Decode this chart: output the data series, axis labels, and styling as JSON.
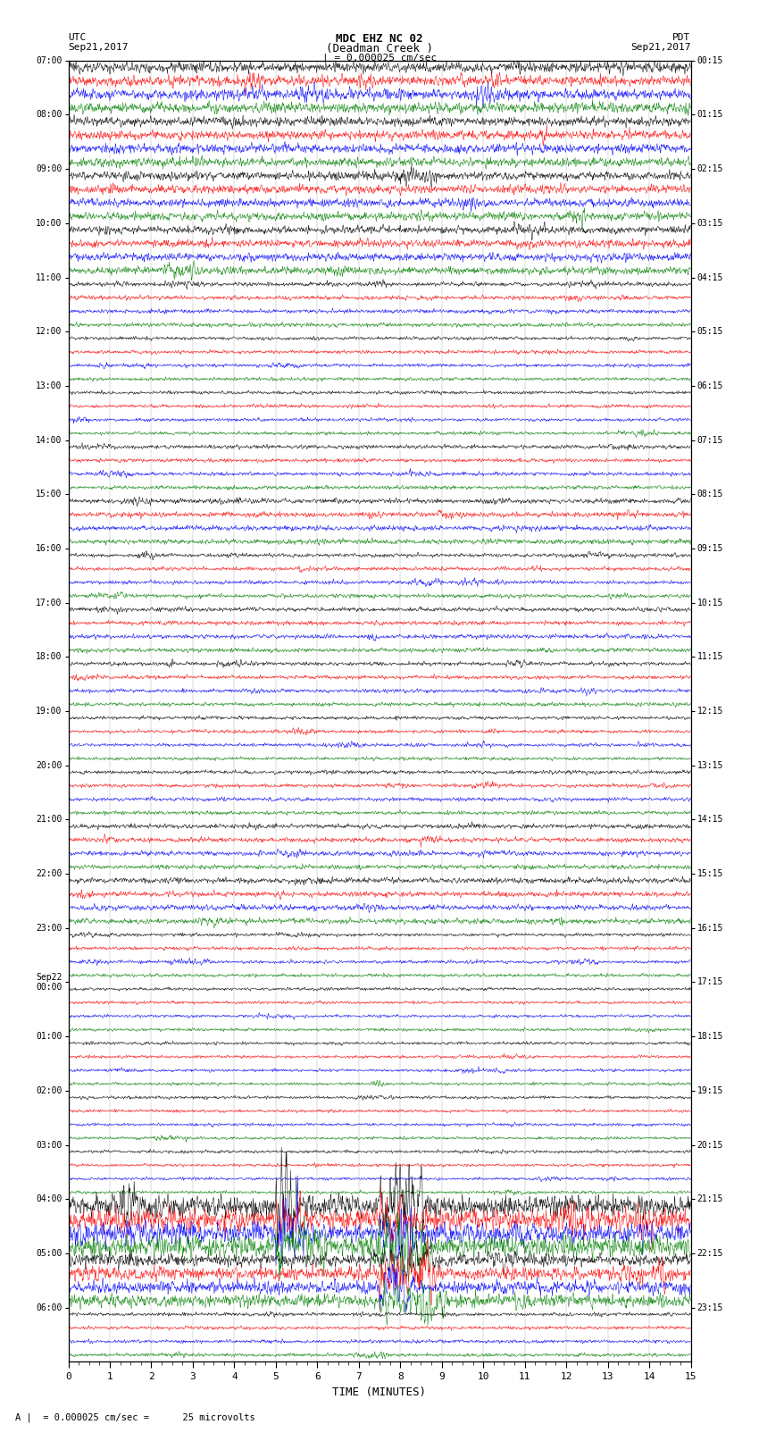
{
  "title_line1": "MDC EHZ NC 02",
  "title_line2": "(Deadman Creek )",
  "title_line3": "| = 0.000025 cm/sec",
  "left_label_top": "UTC",
  "left_label_date": "Sep21,2017",
  "right_label_top": "PDT",
  "right_label_date": "Sep21,2017",
  "bottom_label": "TIME (MINUTES)",
  "bottom_note": "A |  = 0.000025 cm/sec =      25 microvolts",
  "xlabel_ticks": [
    0,
    1,
    2,
    3,
    4,
    5,
    6,
    7,
    8,
    9,
    10,
    11,
    12,
    13,
    14,
    15
  ],
  "utc_labels": [
    "07:00",
    "08:00",
    "09:00",
    "10:00",
    "11:00",
    "12:00",
    "13:00",
    "14:00",
    "15:00",
    "16:00",
    "17:00",
    "18:00",
    "19:00",
    "20:00",
    "21:00",
    "22:00",
    "23:00",
    "Sep22\n00:00",
    "01:00",
    "02:00",
    "03:00",
    "04:00",
    "05:00",
    "06:00"
  ],
  "pdt_labels": [
    "00:15",
    "01:15",
    "02:15",
    "03:15",
    "04:15",
    "05:15",
    "06:15",
    "07:15",
    "08:15",
    "09:15",
    "10:15",
    "11:15",
    "12:15",
    "13:15",
    "14:15",
    "15:15",
    "16:15",
    "17:15",
    "18:15",
    "19:15",
    "20:15",
    "21:15",
    "22:15",
    "23:15"
  ],
  "colors": [
    "black",
    "red",
    "blue",
    "green"
  ],
  "n_hours": 24,
  "traces_per_hour": 4,
  "background_color": "white",
  "grid_color": "#888888",
  "fig_width": 8.5,
  "fig_height": 16.13,
  "dpi": 100
}
